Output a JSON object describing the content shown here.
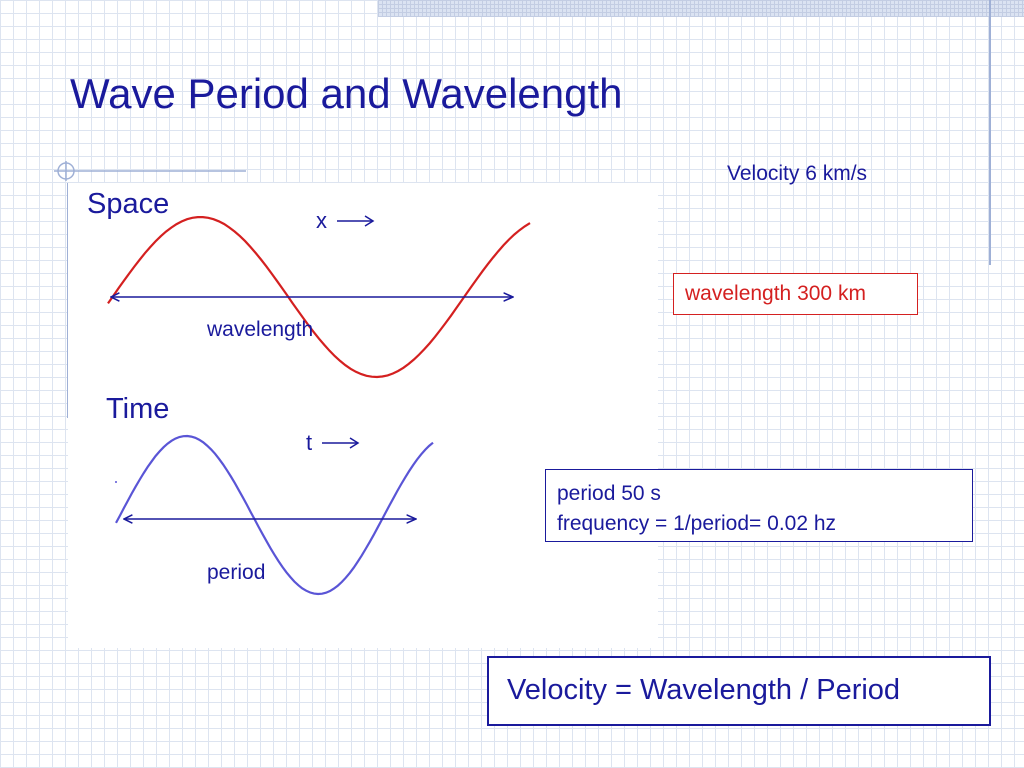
{
  "slide": {
    "title": "Wave Period and Wavelength"
  },
  "space": {
    "heading": "Space",
    "axis_label": "x",
    "span_label": "wavelength"
  },
  "time": {
    "heading": "Time",
    "axis_label": "t",
    "span_label": "period"
  },
  "velocity_note": "Velocity 6 km/s",
  "wavelength_box": "wavelength 300 km",
  "period_box": {
    "line1": "period 50 s",
    "line2": "frequency = 1/period= 0.02 hz"
  },
  "formula": "Velocity = Wavelength / Period",
  "colors": {
    "text": "#1a1a9c",
    "space_wave": "#d42020",
    "time_wave": "#5a55d6",
    "highlight_box": "#d42020"
  }
}
